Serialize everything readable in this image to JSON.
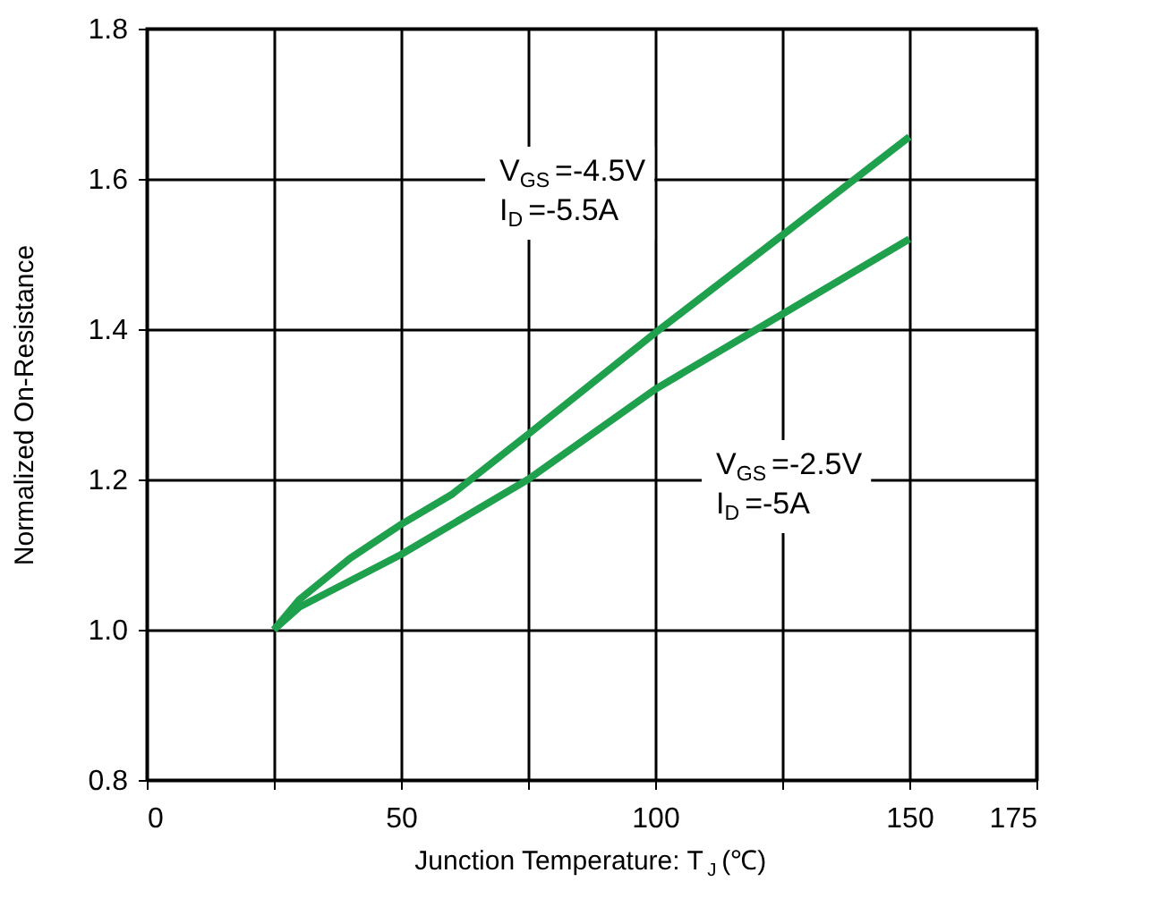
{
  "chart_data": {
    "type": "line",
    "xlabel": "Junction Temperature: T$_{J}$ (℃)",
    "ylabel": "Normalized   On-Resistance",
    "series": [
      {
        "color": "#1ea04c",
        "x": [
          25,
          30,
          40,
          50,
          60,
          75,
          100,
          125,
          150
        ],
        "values": [
          1.0,
          1.04,
          1.095,
          1.14,
          1.18,
          1.26,
          1.395,
          1.525,
          1.656
        ]
      },
      {
        "color": "#1ea04c",
        "x": [
          25,
          30,
          50,
          75,
          100,
          125,
          150
        ],
        "values": [
          1.0,
          1.03,
          1.1,
          1.2,
          1.32,
          1.42,
          1.52
        ]
      }
    ],
    "xlim": [
      0,
      175
    ],
    "xticks": [
      0,
      {
        "value": 25,
        "label": null
      },
      50,
      {
        "value": 75,
        "label": null
      },
      100,
      {
        "value": 125,
        "label": null
      },
      150,
      175
    ],
    "ylim": [
      0.8,
      1.8
    ],
    "yticks": [
      0.8,
      {
        "value": 1.0,
        "label": "1.0"
      },
      1.2,
      1.4,
      1.6,
      1.8
    ],
    "grid": true,
    "marker": "none",
    "line_style": "solid",
    "annotations": [
      "V$_{GS}$=-4.5V\nI$_{D}$=-5.5A",
      "V$_{GS}$=-2.5V\nI$_{D}$=-5A"
    ]
  }
}
